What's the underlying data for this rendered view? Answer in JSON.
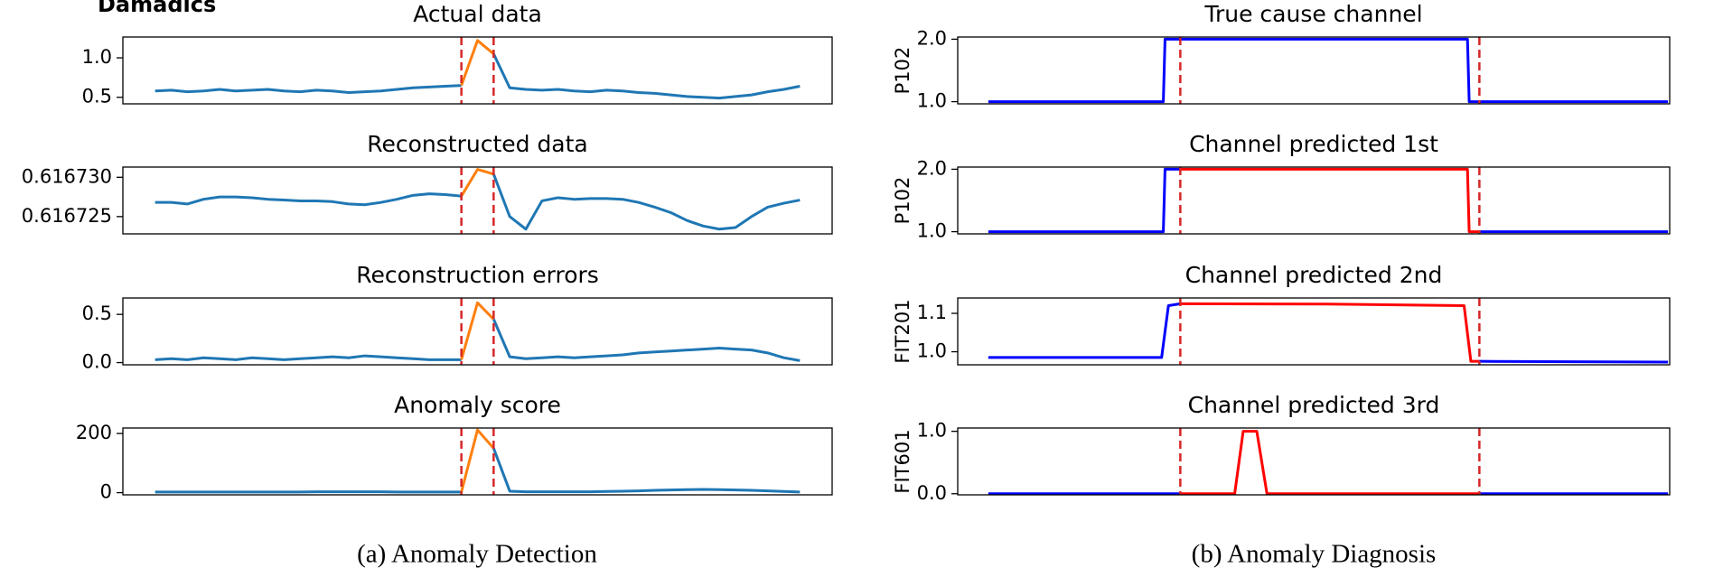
{
  "label": "Damadics",
  "captions": [
    "(a) Anomaly Detection",
    "(b) Anomaly Diagnosis"
  ],
  "chart_data": [
    {
      "type": "line",
      "title": "Actual data",
      "xlim": [
        -2,
        42
      ],
      "ylim": [
        0.417,
        1.264
      ],
      "yticks": [
        0.5,
        {
          "value": 1,
          "label": "1.0"
        }
      ],
      "vlines": [
        19,
        21
      ],
      "vline_color": "#d62728",
      "series": [
        {
          "color": "#1f77b4",
          "values": [
            0.58,
            0.59,
            0.57,
            0.58,
            0.6,
            0.58,
            0.59,
            0.6,
            0.58,
            0.57,
            0.59,
            0.58,
            0.56,
            0.57,
            0.58,
            0.6,
            0.62,
            0.63,
            0.64,
            0.65,
            null,
            1.05,
            0.62,
            0.6,
            0.59,
            0.6,
            0.58,
            0.57,
            0.59,
            0.58,
            0.56,
            0.55,
            0.53,
            0.51,
            0.5,
            0.49,
            0.51,
            0.53,
            0.57,
            0.6,
            0.64
          ]
        },
        {
          "color": "#ff7f0e",
          "values": [
            null,
            null,
            null,
            null,
            null,
            null,
            null,
            null,
            null,
            null,
            null,
            null,
            null,
            null,
            null,
            null,
            null,
            null,
            null,
            0.65,
            1.22,
            1.05,
            null,
            null,
            null,
            null,
            null,
            null,
            null,
            null,
            null,
            null,
            null,
            null,
            null,
            null,
            null,
            null,
            null,
            null,
            null
          ]
        }
      ]
    },
    {
      "type": "line",
      "title": "Reconstructed data",
      "xlim": [
        -2,
        42
      ],
      "ylim": [
        0.6167228,
        0.6167313
      ],
      "yticks": [
        {
          "value": 0.616725,
          "label": "0.616725"
        },
        {
          "value": 0.61673,
          "label": "0.616730"
        }
      ],
      "vlines": [
        19,
        21
      ],
      "vline_color": "#d62728",
      "series": [
        {
          "color": "#1f77b4",
          "values": [
            0.6167268,
            0.6167268,
            0.6167266,
            0.6167272,
            0.6167275,
            0.6167275,
            0.6167274,
            0.6167272,
            0.6167271,
            0.616727,
            0.616727,
            0.6167269,
            0.6167266,
            0.6167265,
            0.6167268,
            0.6167272,
            0.6167277,
            0.6167279,
            0.6167278,
            0.6167276,
            null,
            0.6167304,
            0.616725,
            0.6167234,
            0.616727,
            0.6167274,
            0.6167272,
            0.6167273,
            0.6167273,
            0.6167272,
            0.6167268,
            0.6167262,
            0.6167255,
            0.6167245,
            0.6167238,
            0.6167234,
            0.6167236,
            0.616725,
            0.6167262,
            0.6167267,
            0.6167271
          ]
        },
        {
          "color": "#ff7f0e",
          "values": [
            null,
            null,
            null,
            null,
            null,
            null,
            null,
            null,
            null,
            null,
            null,
            null,
            null,
            null,
            null,
            null,
            null,
            null,
            null,
            0.6167276,
            0.616731,
            0.6167304,
            null,
            null,
            null,
            null,
            null,
            null,
            null,
            null,
            null,
            null,
            null,
            null,
            null,
            null,
            null,
            null,
            null,
            null,
            null
          ]
        }
      ]
    },
    {
      "type": "line",
      "title": "Reconstruction errors",
      "xlim": [
        -2,
        42
      ],
      "ylim": [
        -0.023,
        0.67
      ],
      "yticks": [
        {
          "value": 0,
          "label": "0.0"
        },
        0.5
      ],
      "vlines": [
        19,
        21
      ],
      "vline_color": "#d62728",
      "series": [
        {
          "color": "#1f77b4",
          "values": [
            0.03,
            0.04,
            0.03,
            0.05,
            0.04,
            0.03,
            0.05,
            0.04,
            0.03,
            0.04,
            0.05,
            0.06,
            0.05,
            0.07,
            0.06,
            0.05,
            0.04,
            0.03,
            0.03,
            0.03,
            null,
            0.45,
            0.06,
            0.04,
            0.05,
            0.06,
            0.05,
            0.06,
            0.07,
            0.08,
            0.1,
            0.11,
            0.12,
            0.13,
            0.14,
            0.15,
            0.14,
            0.13,
            0.1,
            0.05,
            0.02
          ]
        },
        {
          "color": "#ff7f0e",
          "values": [
            null,
            null,
            null,
            null,
            null,
            null,
            null,
            null,
            null,
            null,
            null,
            null,
            null,
            null,
            null,
            null,
            null,
            null,
            null,
            0.03,
            0.62,
            0.45,
            null,
            null,
            null,
            null,
            null,
            null,
            null,
            null,
            null,
            null,
            null,
            null,
            null,
            null,
            null,
            null,
            null,
            null,
            null
          ]
        }
      ]
    },
    {
      "type": "line",
      "title": "Anomaly score",
      "xlim": [
        -2,
        42
      ],
      "ylim": [
        -7.4,
        218.5
      ],
      "yticks": [
        0,
        200
      ],
      "vlines": [
        19,
        21
      ],
      "vline_color": "#d62728",
      "series": [
        {
          "color": "#1f77b4",
          "values": [
            2,
            2,
            2,
            2,
            2,
            2,
            2,
            2,
            2,
            2,
            3,
            3,
            3,
            3,
            3,
            2,
            2,
            2,
            2,
            2,
            null,
            150,
            5,
            3,
            3,
            3,
            3,
            3,
            4,
            5,
            6,
            8,
            9,
            10,
            11,
            10,
            9,
            8,
            6,
            4,
            2
          ]
        },
        {
          "color": "#ff7f0e",
          "values": [
            null,
            null,
            null,
            null,
            null,
            null,
            null,
            null,
            null,
            null,
            null,
            null,
            null,
            null,
            null,
            null,
            null,
            null,
            null,
            2,
            212,
            150,
            null,
            null,
            null,
            null,
            null,
            null,
            null,
            null,
            null,
            null,
            null,
            null,
            null,
            null,
            null,
            null,
            null,
            null,
            null
          ]
        }
      ]
    },
    {
      "type": "line",
      "title": "True cause channel",
      "ylabel": "P102",
      "xlim": [
        -1.8,
        40.1
      ],
      "ylim": [
        0.965,
        2.035
      ],
      "yticks": [
        {
          "value": 1,
          "label": "1.0"
        },
        {
          "value": 2,
          "label": "2.0"
        }
      ],
      "vlines": [
        11.3,
        28.9
      ],
      "vline_color": "#d62728",
      "x": [
        0,
        10.3,
        10.4,
        28.2,
        28.3,
        40
      ],
      "series": [
        {
          "color": "#0000ff",
          "values": [
            1,
            1,
            2,
            2,
            1,
            1
          ]
        }
      ]
    },
    {
      "type": "line",
      "title": "Channel predicted 1st",
      "ylabel": "P102",
      "xlim": [
        -1.8,
        40.1
      ],
      "ylim": [
        0.965,
        2.035
      ],
      "yticks": [
        {
          "value": 1,
          "label": "1.0"
        },
        {
          "value": 2,
          "label": "2.0"
        }
      ],
      "vlines": [
        11.3,
        28.9
      ],
      "vline_color": "#d62728",
      "x": [
        0,
        10.3,
        10.4,
        11.3,
        28.2,
        28.3,
        28.9,
        40
      ],
      "series": [
        {
          "color": "#0000ff",
          "values": [
            1,
            1,
            2,
            2,
            null,
            null,
            1,
            1
          ]
        },
        {
          "color": "#ff0000",
          "values": [
            null,
            null,
            null,
            2,
            2,
            1,
            1,
            null
          ]
        }
      ]
    },
    {
      "type": "line",
      "title": "Channel predicted 2nd",
      "ylabel": "FIT201",
      "xlim": [
        -1.8,
        40.1
      ],
      "ylim": [
        0.966,
        1.14
      ],
      "yticks": [
        {
          "value": 1,
          "label": "1.0"
        },
        1.1
      ],
      "vlines": [
        11.3,
        28.9
      ],
      "vline_color": "#d62728",
      "x": [
        0,
        10.2,
        10.6,
        11.3,
        20,
        28.0,
        28.4,
        28.9,
        40
      ],
      "series": [
        {
          "color": "#0000ff",
          "values": [
            0.985,
            0.985,
            1.12,
            1.125,
            null,
            null,
            null,
            0.975,
            0.973
          ]
        },
        {
          "color": "#ff0000",
          "values": [
            null,
            null,
            null,
            1.125,
            1.124,
            1.12,
            0.975,
            0.975,
            null
          ]
        }
      ]
    },
    {
      "type": "line",
      "title": "Channel predicted 3rd",
      "ylabel": "FIT601",
      "xlim": [
        -1.8,
        40.1
      ],
      "ylim": [
        -0.018,
        1.053
      ],
      "yticks": [
        {
          "value": 0,
          "label": "0.0"
        },
        {
          "value": 1,
          "label": "1.0"
        }
      ],
      "vlines": [
        11.3,
        28.9
      ],
      "vline_color": "#d62728",
      "x": [
        0,
        11.3,
        14.5,
        15.0,
        15.8,
        16.4,
        28.9,
        40
      ],
      "series": [
        {
          "color": "#0000ff",
          "values": [
            0,
            0,
            null,
            null,
            null,
            null,
            0,
            0
          ]
        },
        {
          "color": "#ff0000",
          "values": [
            null,
            0,
            0,
            1,
            1,
            0,
            0,
            null
          ]
        }
      ]
    }
  ]
}
